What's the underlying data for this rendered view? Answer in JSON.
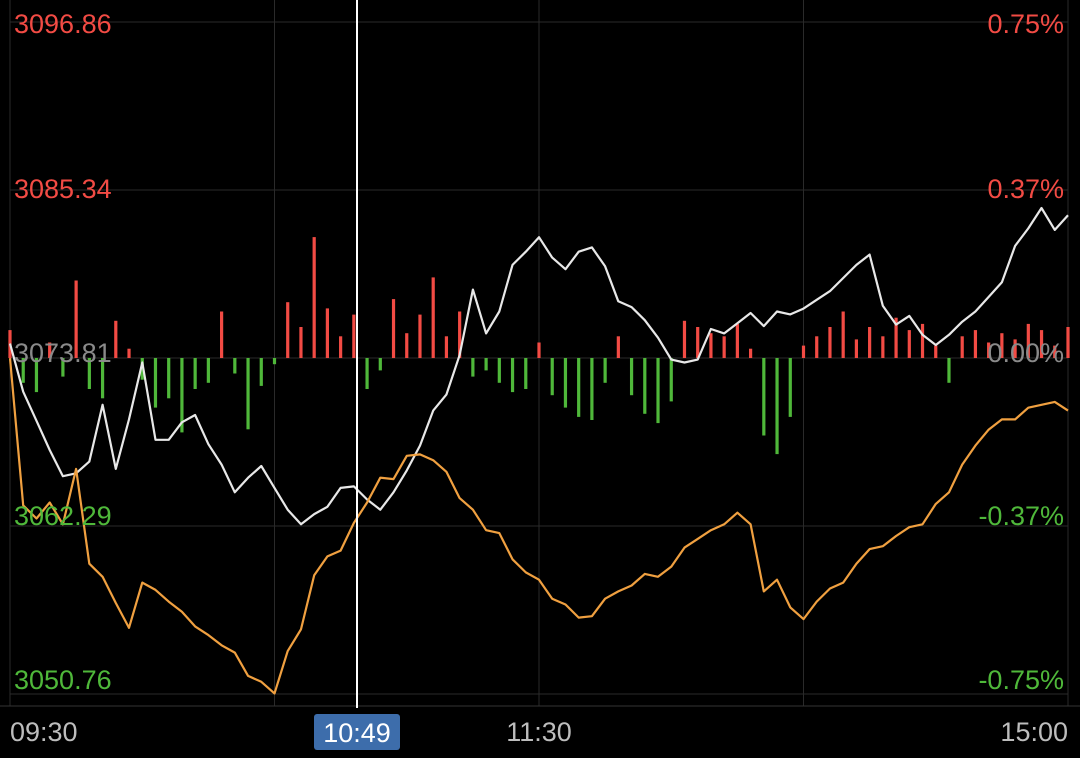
{
  "chart_data": {
    "type": "line",
    "y_labels_left": [
      "3096.86",
      "3085.34",
      "3073.81",
      "3062.29",
      "3050.76"
    ],
    "y_labels_right": [
      "0.75%",
      "0.37%",
      "0.00%",
      "-0.37%",
      "-0.75%"
    ],
    "y_range": [
      3050.76,
      3096.86
    ],
    "y_range_pct": [
      -0.75,
      0.75
    ],
    "x_labels": [
      "09:30",
      "11:30",
      "15:00"
    ],
    "cursor_time": "10:49",
    "colors": {
      "up": "#f24b44",
      "down": "#4fb83a",
      "white_line": "#e8e8e8",
      "yellow_line": "#f0a040",
      "grid": "#2a2a2a",
      "cursor": "#ffffff",
      "badge": "#3d6dab"
    },
    "series": [
      {
        "color": "white",
        "x": [
          0,
          3,
          6,
          9,
          12,
          15,
          18,
          21,
          24,
          27,
          30,
          33,
          36,
          39,
          42,
          45,
          48,
          51,
          54,
          57,
          60,
          63,
          66,
          69,
          72,
          75,
          78,
          81,
          84,
          87,
          90,
          93,
          96,
          99,
          102,
          105,
          108,
          111,
          114,
          117,
          120,
          123,
          126,
          129,
          132,
          135,
          138,
          141,
          144,
          147,
          150,
          153,
          156,
          159,
          162,
          165,
          168,
          171,
          174,
          177,
          180,
          183,
          186,
          189,
          192,
          195,
          198,
          201,
          204,
          207,
          210,
          213,
          216,
          219,
          222,
          225,
          228,
          231,
          234,
          237,
          240
        ],
        "values": [
          3074.8,
          3071.5,
          3069.5,
          3067.5,
          3065.7,
          3065.9,
          3066.7,
          3070.6,
          3066.2,
          3069.6,
          3073.5,
          3068.2,
          3068.2,
          3069.4,
          3069.9,
          3067.9,
          3066.5,
          3064.6,
          3065.6,
          3066.4,
          3064.9,
          3063.4,
          3062.4,
          3063.1,
          3063.6,
          3064.9,
          3065.0,
          3064.1,
          3063.4,
          3064.6,
          3066.1,
          3067.8,
          3070.2,
          3071.3,
          3074.0,
          3078.5,
          3075.5,
          3077.0,
          3080.2,
          3081.1,
          3082.1,
          3080.7,
          3079.9,
          3081.1,
          3081.4,
          3080.1,
          3077.7,
          3077.3,
          3076.4,
          3075.2,
          3073.7,
          3073.5,
          3073.7,
          3075.8,
          3075.5,
          3076.2,
          3076.9,
          3076.0,
          3077.0,
          3076.8,
          3077.2,
          3077.8,
          3078.4,
          3079.3,
          3080.2,
          3080.9,
          3077.4,
          3076.1,
          3076.7,
          3075.4,
          3074.7,
          3075.4,
          3076.3,
          3077.0,
          3078.0,
          3079.0,
          3081.5,
          3082.7,
          3084.1,
          3082.6,
          3083.6
        ]
      },
      {
        "color": "yellow",
        "x": [
          0,
          3,
          6,
          9,
          12,
          15,
          18,
          21,
          24,
          27,
          30,
          33,
          36,
          39,
          42,
          45,
          48,
          51,
          54,
          57,
          60,
          63,
          66,
          69,
          72,
          75,
          78,
          81,
          84,
          87,
          90,
          93,
          96,
          99,
          102,
          105,
          108,
          111,
          114,
          117,
          120,
          123,
          126,
          129,
          132,
          135,
          138,
          141,
          144,
          147,
          150,
          153,
          156,
          159,
          162,
          165,
          168,
          171,
          174,
          177,
          180,
          183,
          186,
          189,
          192,
          195,
          198,
          201,
          204,
          207,
          210,
          213,
          216,
          219,
          222,
          225,
          228,
          231,
          234,
          237,
          240
        ],
        "values": [
          3073.8,
          3063.7,
          3062.8,
          3063.9,
          3062.4,
          3066.2,
          3059.7,
          3058.8,
          3057.0,
          3055.3,
          3058.4,
          3057.9,
          3057.1,
          3056.4,
          3055.4,
          3054.8,
          3054.1,
          3053.6,
          3052.0,
          3051.6,
          3050.8,
          3053.7,
          3055.2,
          3058.9,
          3060.2,
          3060.6,
          3062.5,
          3063.9,
          3065.6,
          3065.5,
          3067.1,
          3067.2,
          3066.8,
          3066.0,
          3064.2,
          3063.4,
          3062.0,
          3061.8,
          3060.0,
          3059.1,
          3058.6,
          3057.3,
          3056.9,
          3056.0,
          3056.1,
          3057.3,
          3057.8,
          3058.2,
          3059.0,
          3058.8,
          3059.5,
          3060.8,
          3061.4,
          3062.0,
          3062.4,
          3063.2,
          3062.4,
          3057.8,
          3058.6,
          3056.7,
          3055.9,
          3057.1,
          3058.0,
          3058.4,
          3059.7,
          3060.7,
          3060.9,
          3061.6,
          3062.2,
          3062.4,
          3063.8,
          3064.6,
          3066.5,
          3067.8,
          3068.9,
          3069.6,
          3069.6,
          3070.4,
          3070.6,
          3070.8,
          3070.2
        ]
      }
    ],
    "histogram": {
      "x": [
        0,
        3,
        6,
        9,
        12,
        15,
        18,
        21,
        24,
        27,
        30,
        33,
        36,
        39,
        42,
        45,
        48,
        51,
        54,
        57,
        60,
        63,
        66,
        69,
        72,
        75,
        78,
        81,
        84,
        87,
        90,
        93,
        96,
        99,
        102,
        105,
        108,
        111,
        114,
        117,
        120,
        123,
        126,
        129,
        132,
        135,
        138,
        141,
        144,
        147,
        150,
        153,
        156,
        159,
        162,
        165,
        168,
        171,
        174,
        177,
        180,
        183,
        186,
        189,
        192,
        195,
        198,
        201,
        204,
        207,
        210,
        213,
        216,
        219,
        222,
        225,
        228,
        231,
        234,
        237,
        240
      ],
      "values": [
        0.9,
        -0.8,
        -1.1,
        0.5,
        -0.6,
        2.5,
        -1.0,
        -1.3,
        1.2,
        0.3,
        -0.7,
        -1.6,
        -1.3,
        -2.4,
        -1.0,
        -0.8,
        1.5,
        -0.5,
        -2.3,
        -0.9,
        -0.2,
        1.8,
        1.0,
        3.9,
        1.6,
        0.7,
        1.4,
        -1.0,
        -0.4,
        1.9,
        0.8,
        1.4,
        2.6,
        0.7,
        1.5,
        -0.6,
        -0.4,
        -0.8,
        -1.1,
        -1.0,
        0.5,
        -1.2,
        -1.6,
        -1.9,
        -2.0,
        -0.8,
        0.7,
        -1.2,
        -1.8,
        -2.1,
        -1.4,
        1.2,
        1.0,
        0.8,
        0.7,
        1.1,
        0.3,
        -2.5,
        -3.1,
        -1.9,
        0.4,
        0.7,
        1.0,
        1.5,
        0.6,
        1.0,
        0.7,
        1.3,
        0.9,
        1.1,
        0.4,
        -0.8,
        0.7,
        0.9,
        0.5,
        0.8,
        0.6,
        1.1,
        0.9,
        0.4,
        1.0
      ]
    }
  }
}
